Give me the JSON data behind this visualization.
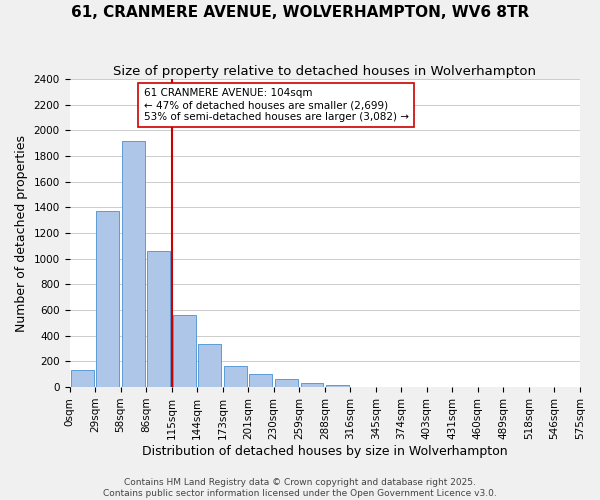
{
  "title": "61, CRANMERE AVENUE, WOLVERHAMPTON, WV6 8TR",
  "subtitle": "Size of property relative to detached houses in Wolverhampton",
  "xlabel": "Distribution of detached houses by size in Wolverhampton",
  "ylabel": "Number of detached properties",
  "bar_values": [
    130,
    1370,
    1920,
    1060,
    560,
    335,
    165,
    105,
    60,
    30,
    15,
    0,
    0,
    0,
    0,
    0,
    0,
    0,
    0,
    0
  ],
  "bar_labels": [
    "0sqm",
    "29sqm",
    "58sqm",
    "86sqm",
    "115sqm",
    "144sqm",
    "173sqm",
    "201sqm",
    "230sqm",
    "259sqm",
    "288sqm",
    "316sqm",
    "345sqm",
    "374sqm",
    "403sqm",
    "431sqm",
    "460sqm",
    "489sqm",
    "518sqm",
    "546sqm",
    "575sqm"
  ],
  "bar_color": "#aec6e8",
  "bar_edge_color": "#5b9bd5",
  "vline_x": 3.5,
  "vline_color": "#cc0000",
  "annotation_title": "61 CRANMERE AVENUE: 104sqm",
  "annotation_line1": "← 47% of detached houses are smaller (2,699)",
  "annotation_line2": "53% of semi-detached houses are larger (3,082) →",
  "ylim": [
    0,
    2400
  ],
  "yticks": [
    0,
    200,
    400,
    600,
    800,
    1000,
    1200,
    1400,
    1600,
    1800,
    2000,
    2200,
    2400
  ],
  "footer1": "Contains HM Land Registry data © Crown copyright and database right 2025.",
  "footer2": "Contains public sector information licensed under the Open Government Licence v3.0.",
  "background_color": "#f0f0f0",
  "plot_bg_color": "#ffffff",
  "title_fontsize": 11,
  "subtitle_fontsize": 9.5,
  "xlabel_fontsize": 9,
  "ylabel_fontsize": 9,
  "tick_fontsize": 7.5,
  "footer_fontsize": 6.5
}
